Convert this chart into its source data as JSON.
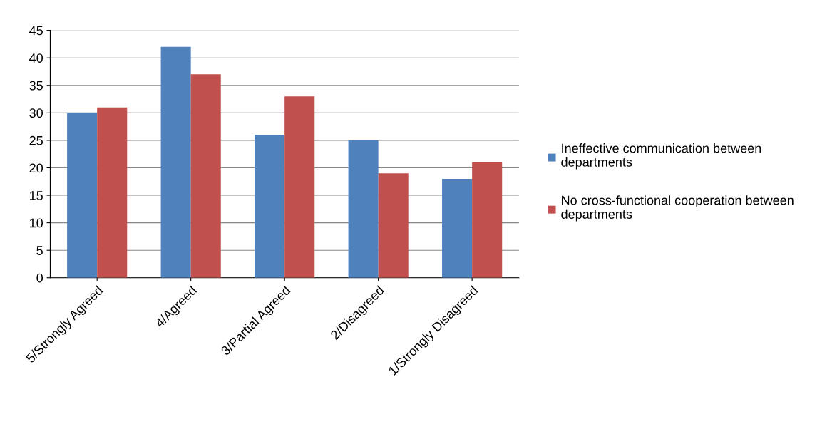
{
  "chart_data": {
    "type": "bar",
    "categories": [
      "5/Strongly Agreed",
      "4/Agreed",
      "3/Partial Agreed",
      "2/Disagreed",
      "1/Strongly Disagreed"
    ],
    "series": [
      {
        "name": "Ineffective communication between departments",
        "color": "#4f81bd",
        "values": [
          30,
          42,
          26,
          25,
          18
        ]
      },
      {
        "name": "No cross-functional cooperation between departments",
        "color": "#c0504d",
        "values": [
          31,
          37,
          33,
          19,
          21
        ]
      }
    ],
    "ylim": [
      0,
      45
    ],
    "yticks": [
      0,
      5,
      10,
      15,
      20,
      25,
      30,
      35,
      40,
      45
    ],
    "grid": "y",
    "legend": "right"
  }
}
